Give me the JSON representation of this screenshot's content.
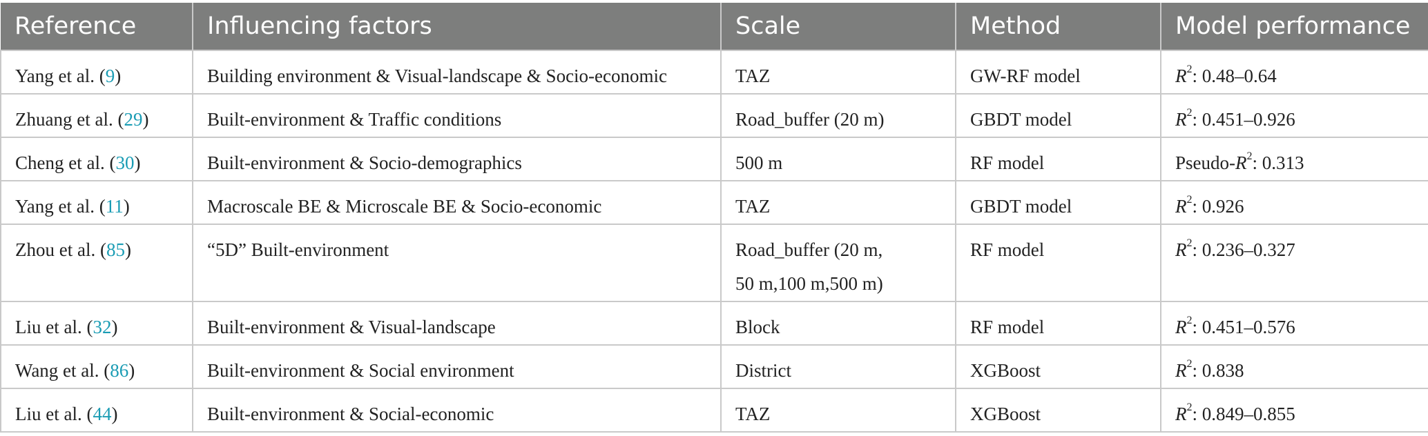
{
  "table": {
    "headers": [
      "Reference",
      "Influencing factors",
      "Scale",
      "Method",
      "Model performance"
    ],
    "rows": [
      {
        "author": "Yang et al. (",
        "ref": "9",
        "close": ")",
        "factors": "Building environment & Visual-landscape & Socio-economic",
        "scale_lines": [
          "TAZ"
        ],
        "method": "GW-RF model",
        "perf_prefix": "",
        "perf_var": "R",
        "perf_sup": "2",
        "perf_value": ": 0.48–0.64"
      },
      {
        "author": "Zhuang et al. (",
        "ref": "29",
        "close": ")",
        "factors": "Built-environment & Traffic conditions",
        "scale_lines": [
          "Road_buffer (20 m)"
        ],
        "method": "GBDT model",
        "perf_prefix": "",
        "perf_var": "R",
        "perf_sup": "2",
        "perf_value": ": 0.451–0.926"
      },
      {
        "author": "Cheng et al. (",
        "ref": "30",
        "close": ")",
        "factors": "Built-environment & Socio-demographics",
        "scale_lines": [
          "500 m"
        ],
        "method": "RF model",
        "perf_prefix": "Pseudo-",
        "perf_var": "R",
        "perf_sup": "2",
        "perf_value": ": 0.313"
      },
      {
        "author": "Yang et al. (",
        "ref": "11",
        "close": ")",
        "factors": "Macroscale BE & Microscale BE & Socio-economic",
        "scale_lines": [
          "TAZ"
        ],
        "method": "GBDT model",
        "perf_prefix": "",
        "perf_var": "R",
        "perf_sup": "2",
        "perf_value": ": 0.926"
      },
      {
        "author": "Zhou et al. (",
        "ref": "85",
        "close": ")",
        "factors": "“5D” Built-environment",
        "scale_lines": [
          "Road_buffer (20 m,",
          "50 m,100 m,500 m)"
        ],
        "method": "RF model",
        "perf_prefix": "",
        "perf_var": "R",
        "perf_sup": "2",
        "perf_value": ": 0.236–0.327"
      },
      {
        "author": "Liu et al. (",
        "ref": "32",
        "close": ")",
        "factors": "Built-environment & Visual-landscape",
        "scale_lines": [
          "Block"
        ],
        "method": "RF model",
        "perf_prefix": "",
        "perf_var": "R",
        "perf_sup": "2",
        "perf_value": ": 0.451–0.576"
      },
      {
        "author": "Wang et al. (",
        "ref": "86",
        "close": ")",
        "factors": "Built-environment & Social environment",
        "scale_lines": [
          "District"
        ],
        "method": "XGBoost",
        "perf_prefix": "",
        "perf_var": "R",
        "perf_sup": "2",
        "perf_value": ": 0.838"
      },
      {
        "author": "Liu et al. (",
        "ref": "44",
        "close": ")",
        "factors": "Built-environment & Social-economic",
        "scale_lines": [
          "TAZ"
        ],
        "method": "XGBoost",
        "perf_prefix": "",
        "perf_var": "R",
        "perf_sup": "2",
        "perf_value": ": 0.849–0.855"
      }
    ]
  }
}
